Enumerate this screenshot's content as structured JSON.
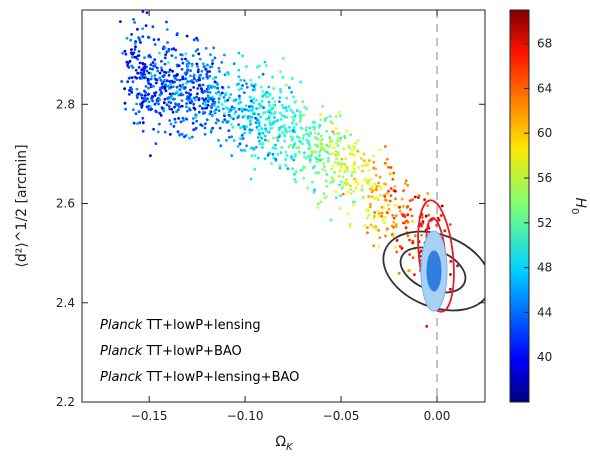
{
  "chart_data": {
    "type": "scatter",
    "xlabel_main": "Ω",
    "xlabel_sub": "K",
    "ylabel": "⟨d²⟩^1/2 [arcmin]",
    "xlim": [
      -0.185,
      0.025
    ],
    "ylim": [
      2.2,
      2.99
    ],
    "xticks": [
      -0.15,
      -0.1,
      -0.05,
      0.0
    ],
    "xtick_labels": [
      "−0.15",
      "−0.10",
      "−0.05",
      "0.00"
    ],
    "yticks": [
      2.2,
      2.4,
      2.6,
      2.8
    ],
    "ytick_labels": [
      "2.2",
      "2.4",
      "2.6",
      "2.8"
    ],
    "colorbar": {
      "label_main": "H",
      "label_sub": "0",
      "range": [
        36,
        71
      ],
      "ticks": [
        40,
        44,
        48,
        52,
        56,
        60,
        64,
        68
      ],
      "tick_labels": [
        "40",
        "44",
        "48",
        "52",
        "56",
        "60",
        "64",
        "68"
      ]
    },
    "reference_line": {
      "x": 0.0,
      "style": "dashed",
      "color": "#999999"
    },
    "scatter_trend": {
      "points_count": 1400,
      "x_range": [
        -0.16,
        0.005
      ],
      "y_at_x": [
        [
          -0.16,
          2.86
        ],
        [
          -0.12,
          2.82
        ],
        [
          -0.08,
          2.75
        ],
        [
          -0.05,
          2.68
        ],
        [
          -0.02,
          2.58
        ],
        [
          0.0,
          2.5
        ]
      ],
      "color_at_x": [
        [
          -0.16,
          42
        ],
        [
          -0.12,
          44
        ],
        [
          -0.08,
          50
        ],
        [
          -0.05,
          55
        ],
        [
          -0.02,
          63
        ],
        [
          0.0,
          68
        ]
      ]
    },
    "contours": [
      {
        "dataset": "TT+lowP+lensing",
        "color": "#333333",
        "center": [
          -0.01,
          2.46
        ],
        "levels": [
          "68%",
          "95%"
        ]
      },
      {
        "dataset": "TT+lowP+BAO",
        "color": "#e0202a",
        "center": [
          0.001,
          2.49
        ],
        "levels": [
          "68%",
          "95%"
        ]
      },
      {
        "dataset": "TT+lowP+lensing+BAO",
        "color": "#5aa0e8",
        "center": [
          -0.001,
          2.45
        ],
        "levels": [
          "68%",
          "95%"
        ]
      }
    ],
    "legend": {
      "placement": "lower-left",
      "entries": [
        {
          "emph": "Planck",
          "text": " TT+lowP+lensing",
          "color": "#222222"
        },
        {
          "emph": "Planck",
          "text": " TT+lowP+BAO",
          "color": "#e0202a"
        },
        {
          "emph": "Planck",
          "text": " TT+lowP+lensing+BAO",
          "color": "#4a90e2"
        }
      ]
    }
  }
}
